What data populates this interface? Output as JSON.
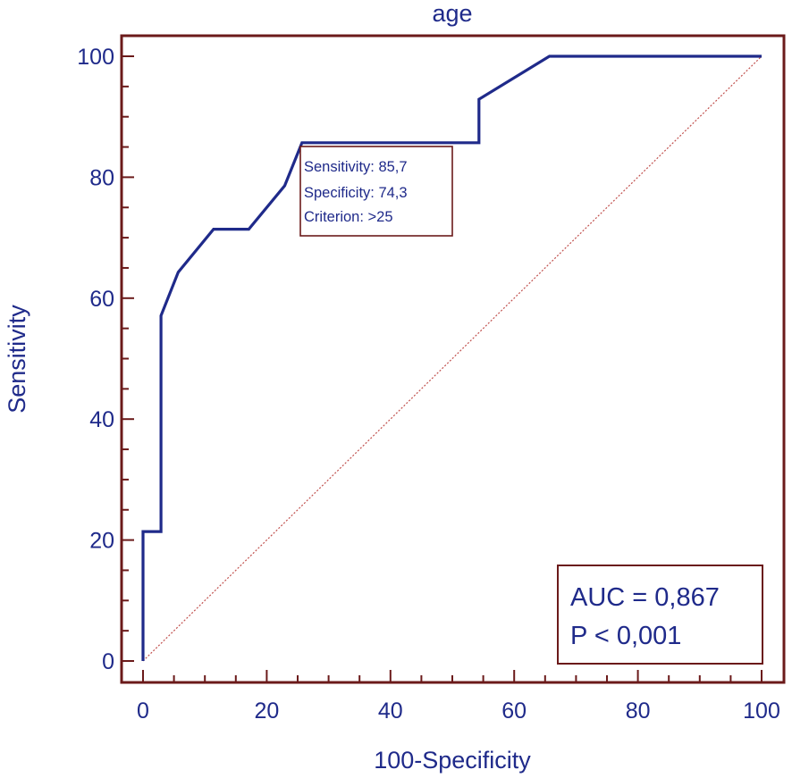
{
  "chart_data": {
    "type": "line",
    "title": "age",
    "xlabel": "100-Specificity",
    "ylabel": "Sensitivity",
    "xlim": [
      0,
      100
    ],
    "ylim": [
      0,
      100
    ],
    "xticks": [
      0,
      20,
      40,
      60,
      80,
      100
    ],
    "yticks": [
      0,
      20,
      40,
      60,
      80,
      100
    ],
    "grid": false,
    "series": [
      {
        "x": [
          0,
          0,
          2.9,
          2.9,
          5.7,
          11.4,
          17.1,
          22.9,
          25.7,
          54.3,
          54.3,
          65.7,
          100
        ],
        "y": [
          0,
          21.4,
          21.4,
          57.1,
          64.3,
          71.4,
          71.4,
          78.6,
          85.7,
          85.7,
          92.9,
          100,
          100
        ]
      }
    ],
    "reference_line": {
      "x": [
        0,
        100
      ],
      "y": [
        0,
        100
      ]
    },
    "annotation": {
      "lines": [
        "Sensitivity: 85,7",
        "Specificity: 74,3",
        "Criterion: >25"
      ]
    },
    "stats": {
      "auc": "AUC = 0,867",
      "p": "P < 0,001"
    },
    "colors": {
      "curve": "#1f2a8a",
      "frame": "#6b1a1a",
      "reference": "#c0504d",
      "text": "#1f2a8a"
    }
  }
}
